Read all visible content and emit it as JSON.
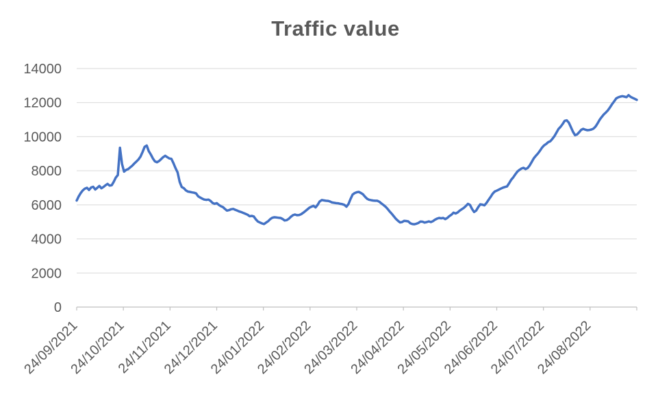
{
  "title": "Traffic value",
  "colors": {
    "line": "#4472C4",
    "text": "#595959",
    "gridline": "#D9D9D9",
    "axis": "#BFBFBF",
    "background": "#FFFFFF"
  },
  "chart_data": {
    "type": "line",
    "title": "Traffic value",
    "xlabel": "",
    "ylabel": "",
    "legend": "none",
    "grid": "horizontal",
    "ylim": [
      0,
      14000
    ],
    "y_ticks": [
      0,
      2000,
      4000,
      6000,
      8000,
      10000,
      12000,
      14000
    ],
    "x_tick_labels": [
      "24/09/2021",
      "24/10/2021",
      "24/11/2021",
      "24/12/2021",
      "24/01/2022",
      "24/02/2022",
      "24/03/2022",
      "24/04/2022",
      "24/05/2022",
      "24/06/2022",
      "24/07/2022",
      "24/08/2022"
    ],
    "x_range": [
      "24/09/2021",
      "24/09/2022"
    ],
    "series_name": "Traffic value",
    "values": [
      6250,
      6500,
      6700,
      6850,
      6950,
      7000,
      6870,
      7020,
      7060,
      6900,
      7000,
      7110,
      6970,
      7050,
      7150,
      7230,
      7130,
      7150,
      7350,
      7600,
      7750,
      9350,
      8400,
      7950,
      8050,
      8100,
      8200,
      8300,
      8430,
      8540,
      8660,
      8830,
      9100,
      9400,
      9480,
      9150,
      8950,
      8720,
      8550,
      8500,
      8570,
      8680,
      8800,
      8880,
      8800,
      8720,
      8700,
      8450,
      8150,
      7900,
      7350,
      7050,
      6980,
      6850,
      6780,
      6760,
      6730,
      6710,
      6670,
      6500,
      6430,
      6360,
      6310,
      6290,
      6310,
      6230,
      6110,
      6060,
      6100,
      6000,
      5920,
      5870,
      5760,
      5660,
      5690,
      5740,
      5760,
      5710,
      5660,
      5610,
      5570,
      5520,
      5470,
      5420,
      5330,
      5350,
      5320,
      5150,
      5020,
      4960,
      4910,
      4870,
      4960,
      5040,
      5160,
      5240,
      5270,
      5260,
      5240,
      5230,
      5170,
      5080,
      5100,
      5180,
      5300,
      5390,
      5430,
      5390,
      5400,
      5450,
      5530,
      5630,
      5730,
      5830,
      5890,
      5940,
      5850,
      6000,
      6200,
      6280,
      6260,
      6240,
      6230,
      6200,
      6140,
      6120,
      6100,
      6090,
      6060,
      6040,
      6000,
      5890,
      6050,
      6350,
      6600,
      6690,
      6740,
      6760,
      6700,
      6620,
      6480,
      6360,
      6300,
      6270,
      6250,
      6240,
      6240,
      6180,
      6080,
      5990,
      5890,
      5760,
      5610,
      5480,
      5330,
      5180,
      5070,
      4970,
      4990,
      5060,
      5050,
      5030,
      4920,
      4870,
      4860,
      4890,
      4940,
      5020,
      5010,
      4960,
      4990,
      5030,
      4990,
      5040,
      5130,
      5190,
      5230,
      5210,
      5230,
      5160,
      5230,
      5340,
      5420,
      5540,
      5490,
      5550,
      5660,
      5740,
      5820,
      5930,
      6060,
      6000,
      5760,
      5580,
      5660,
      5860,
      6030,
      6010,
      5970,
      6110,
      6290,
      6460,
      6650,
      6780,
      6830,
      6890,
      6950,
      7010,
      7050,
      7080,
      7260,
      7470,
      7610,
      7790,
      7950,
      8050,
      8130,
      8170,
      8100,
      8160,
      8310,
      8520,
      8730,
      8880,
      9010,
      9180,
      9360,
      9490,
      9570,
      9680,
      9730,
      9870,
      10030,
      10240,
      10450,
      10580,
      10740,
      10930,
      10960,
      10820,
      10560,
      10290,
      10090,
      10130,
      10260,
      10400,
      10460,
      10410,
      10380,
      10390,
      10420,
      10470,
      10600,
      10790,
      11000,
      11160,
      11310,
      11420,
      11550,
      11720,
      11910,
      12070,
      12240,
      12310,
      12350,
      12380,
      12350,
      12320,
      12440,
      12340,
      12280,
      12220,
      12160
    ]
  }
}
